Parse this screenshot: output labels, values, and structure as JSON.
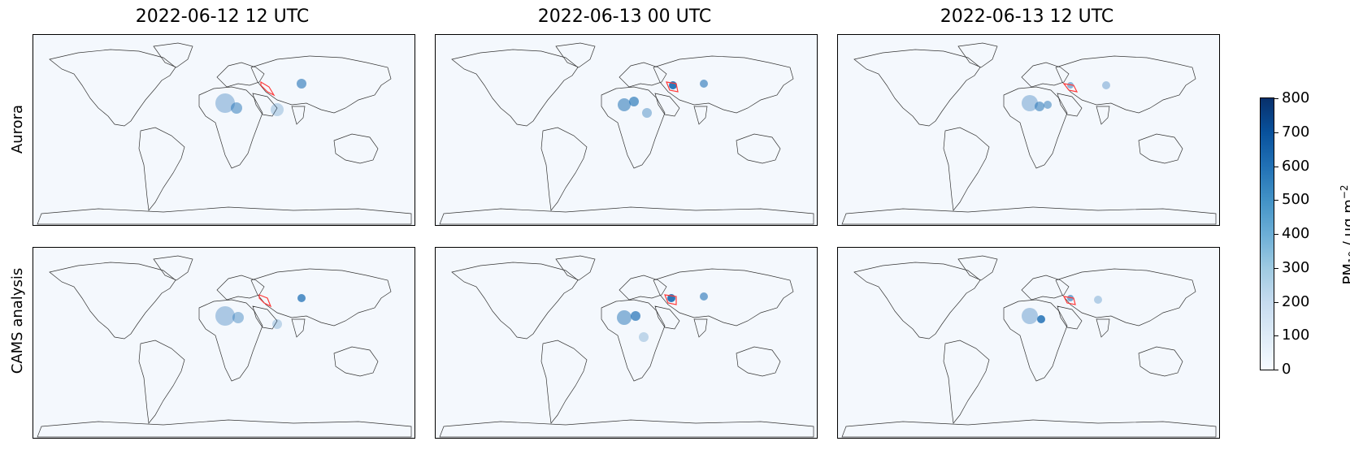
{
  "columns": [
    {
      "title": "2022-06-12 12 UTC"
    },
    {
      "title": "2022-06-13 00 UTC"
    },
    {
      "title": "2022-06-13 12 UTC"
    }
  ],
  "rows": [
    {
      "label": "Aurora"
    },
    {
      "label": "CAMS analysis"
    }
  ],
  "colorbar": {
    "label_main": "PM",
    "label_sub": "10",
    "label_unit": " / μg m",
    "label_sup": "−2",
    "ticks": [
      "0",
      "100",
      "200",
      "300",
      "400",
      "500",
      "600",
      "700",
      "800"
    ],
    "range": [
      0,
      800
    ],
    "colormap": "Blues",
    "colors": [
      "#f7fbff",
      "#deebf7",
      "#c6dbef",
      "#9ecae1",
      "#6baed6",
      "#4292c6",
      "#2171b5",
      "#08519c",
      "#08306b"
    ]
  },
  "map": {
    "projection": "equirectangular",
    "coastline_color": "#333333",
    "highlight_contour_color": "#ff3b3b",
    "background_color": "#f4f8fd"
  }
}
